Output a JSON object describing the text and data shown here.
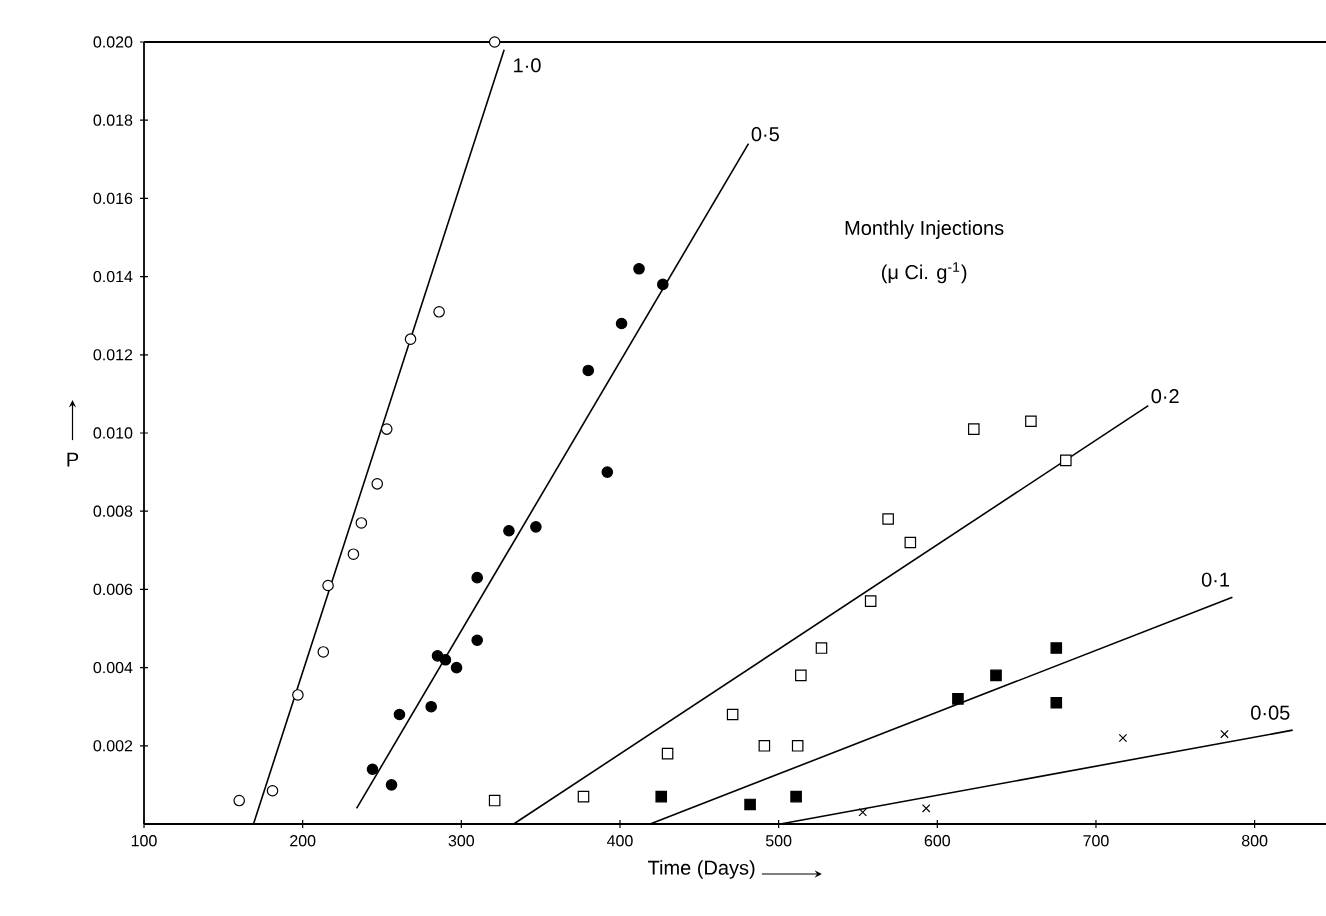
{
  "chart_data": {
    "type": "scatter",
    "xlabel": "Time (Days)",
    "ylabel": "P",
    "annotations": [
      "Monthly Injections",
      "(μ Ci. g$^{-1}$)"
    ],
    "xlim": [
      100,
      845
    ],
    "ylim": [
      0,
      0.02
    ],
    "xticks": [
      100,
      200,
      300,
      400,
      500,
      600,
      700,
      800
    ],
    "yticks": [
      0.002,
      0.004,
      0.006,
      0.008,
      {
        "value": 0.01,
        "label": "0.010"
      },
      {
        "value": 0.012,
        "label": "0.012"
      },
      {
        "value": 0.014,
        "label": "0.014"
      },
      {
        "value": 0.016,
        "label": "0.016"
      },
      {
        "value": 0.018,
        "label": "0.018"
      },
      {
        "value": 0.02,
        "label": "0.020"
      }
    ],
    "grid": false,
    "series": [
      {
        "marker": "circle",
        "color": "#ffffff",
        "x": [
          160,
          181,
          197,
          213,
          216,
          232,
          237,
          247,
          253,
          268,
          286,
          321
        ],
        "values": [
          0.0006,
          0.00085,
          0.0033,
          0.0044,
          0.0061,
          0.0069,
          0.0077,
          0.0087,
          0.0101,
          0.0124,
          0.0131,
          0.02
        ]
      },
      {
        "type": "line",
        "name": "1·0",
        "color": "#000000",
        "x": [
          169,
          327
        ],
        "values": [
          0,
          0.0198
        ]
      },
      {
        "marker": "circle",
        "color": "#000000",
        "x": [
          244,
          256,
          261,
          281,
          285,
          290,
          297,
          310,
          310,
          330,
          347,
          392,
          380,
          401,
          412,
          427
        ],
        "values": [
          0.0014,
          0.001,
          0.0028,
          0.003,
          0.0043,
          0.0042,
          0.004,
          0.0047,
          0.0063,
          0.0075,
          0.0076,
          0.009,
          0.0116,
          0.0128,
          0.0142,
          0.0138
        ]
      },
      {
        "type": "line",
        "name": "0·5",
        "color": "#000000",
        "x": [
          234,
          481
        ],
        "values": [
          0.0004,
          0.0174
        ]
      },
      {
        "marker": "square",
        "color": "#ffffff",
        "x": [
          321,
          377,
          430,
          471,
          491,
          512,
          514,
          527,
          558,
          569,
          583,
          681,
          623,
          659
        ],
        "values": [
          0.0006,
          0.0007,
          0.0018,
          0.0028,
          0.002,
          0.002,
          0.0038,
          0.0045,
          0.0057,
          0.0078,
          0.0072,
          0.0093,
          0.0101,
          0.0103
        ]
      },
      {
        "type": "line",
        "name": "0·2",
        "color": "#000000",
        "x": [
          333,
          733
        ],
        "values": [
          0,
          0.0107
        ]
      },
      {
        "marker": "square",
        "color": "#000000",
        "x": [
          426,
          482,
          511,
          613,
          637,
          675,
          675
        ],
        "values": [
          0.0007,
          0.0005,
          0.0007,
          0.0032,
          0.0038,
          0.0045,
          0.0031
        ]
      },
      {
        "type": "line",
        "name": "0·1",
        "color": "#000000",
        "x": [
          419,
          786
        ],
        "values": [
          0,
          0.0058
        ]
      },
      {
        "marker": "cross",
        "color": "#000000",
        "x": [
          553,
          593,
          717,
          781
        ],
        "values": [
          0.0003,
          0.0004,
          0.0022,
          0.0023
        ]
      },
      {
        "type": "line",
        "name": "0·05",
        "color": "#000000",
        "x": [
          501,
          824
        ],
        "values": [
          0,
          0.0024
        ]
      }
    ]
  }
}
